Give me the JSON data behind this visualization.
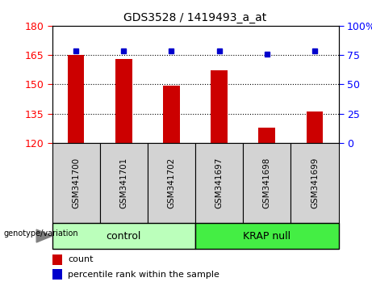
{
  "title": "GDS3528 / 1419493_a_at",
  "categories": [
    "GSM341700",
    "GSM341701",
    "GSM341702",
    "GSM341697",
    "GSM341698",
    "GSM341699"
  ],
  "bar_values": [
    165.0,
    163.0,
    149.5,
    157.0,
    128.0,
    136.0
  ],
  "percentile_values": [
    167.0,
    167.0,
    167.0,
    167.0,
    165.5,
    167.0
  ],
  "bar_color": "#cc0000",
  "marker_color": "#0000cc",
  "ylim_left": [
    120,
    180
  ],
  "ylim_right": [
    0,
    100
  ],
  "yticks_left": [
    120,
    135,
    150,
    165,
    180
  ],
  "yticks_right": [
    0,
    25,
    50,
    75,
    100
  ],
  "groups": [
    {
      "label": "control",
      "indices": [
        0,
        1,
        2
      ],
      "color": "#bbffbb"
    },
    {
      "label": "KRAP null",
      "indices": [
        3,
        4,
        5
      ],
      "color": "#44ee44"
    }
  ],
  "group_label_prefix": "genotype/variation",
  "legend_count_label": "count",
  "legend_percentile_label": "percentile rank within the sample",
  "background_color": "#ffffff",
  "col_header_color": "#d3d3d3",
  "bar_width": 0.35
}
